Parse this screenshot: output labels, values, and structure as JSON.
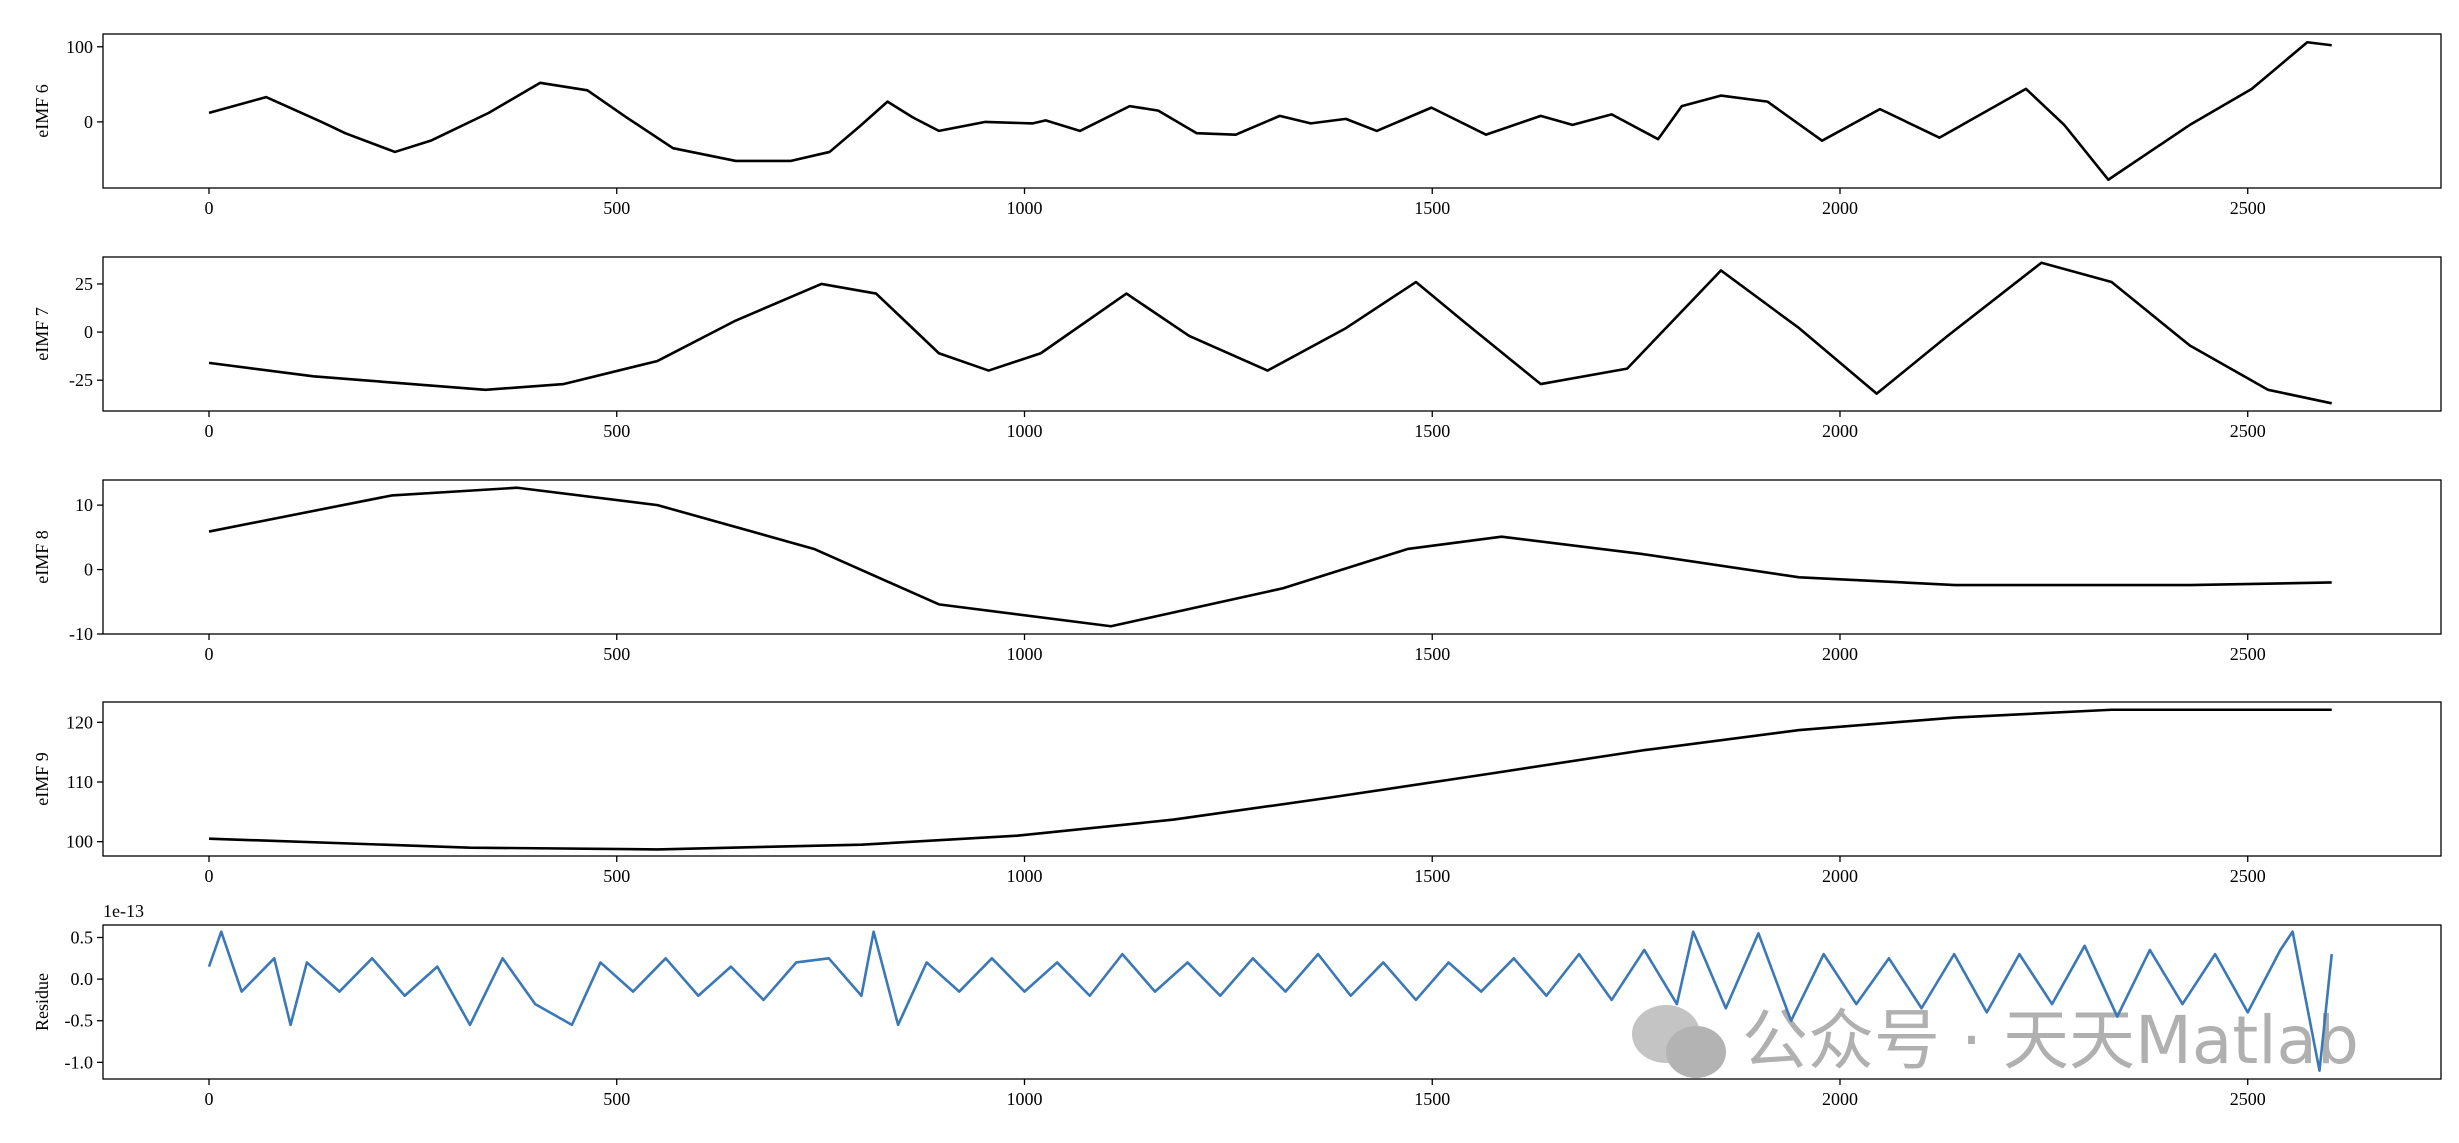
{
  "chart_data": [
    {
      "type": "line",
      "ylabel": "eIMF 6",
      "color": "#000000",
      "x": [
        0,
        70,
        138,
        167,
        228,
        272,
        343,
        406,
        464,
        512,
        569,
        646,
        713,
        761,
        800,
        832,
        863,
        895,
        952,
        1010,
        1026,
        1068,
        1129,
        1164,
        1211,
        1259,
        1313,
        1351,
        1394,
        1432,
        1499,
        1566,
        1633,
        1672,
        1720,
        1777,
        1806,
        1854,
        1911,
        1978,
        2049,
        2122,
        2228,
        2275,
        2329,
        2429,
        2505,
        2573,
        2603
      ],
      "values": [
        12,
        33,
        0,
        -15,
        -40,
        -25,
        12,
        52,
        42,
        6,
        -35,
        -52,
        -52,
        -40,
        -4,
        27,
        6,
        -12,
        0,
        -2,
        2,
        -12,
        21,
        15,
        -15,
        -17,
        8,
        -2,
        4,
        -12,
        19,
        -17,
        8,
        -4,
        10,
        -23,
        21,
        35,
        27,
        -25,
        17,
        -21,
        44,
        -4,
        -77,
        -4,
        44,
        106,
        102
      ],
      "xlim": [
        -130,
        2737
      ],
      "ylim": [
        -88,
        117
      ],
      "xticks": [
        0,
        500,
        1000,
        1500,
        2000,
        2500
      ],
      "yticks": [
        0,
        100
      ]
    },
    {
      "type": "line",
      "ylabel": "eIMF 7",
      "color": "#000000",
      "x": [
        0,
        128,
        339,
        435,
        550,
        646,
        751,
        818,
        895,
        956,
        1020,
        1125,
        1202,
        1298,
        1394,
        1480,
        1537,
        1633,
        1739,
        1854,
        1950,
        2045,
        2132,
        2247,
        2333,
        2429,
        2525,
        2603
      ],
      "values": [
        -16,
        -23,
        -30,
        -27,
        -15,
        6,
        25,
        20,
        -11,
        -20,
        -11,
        20,
        -2,
        -20,
        2,
        26,
        6,
        -27,
        -19,
        32,
        2,
        -32,
        -2,
        36,
        26,
        -7,
        -30,
        -37
      ],
      "xlim": [
        -130,
        2737
      ],
      "ylim": [
        -41,
        39
      ],
      "xticks": [
        0,
        500,
        1000,
        1500,
        2000,
        2500
      ],
      "yticks": [
        -25,
        0,
        25
      ]
    },
    {
      "type": "line",
      "ylabel": "eIMF 8",
      "color": "#000000",
      "x": [
        0,
        224,
        378,
        550,
        742,
        895,
        1106,
        1317,
        1470,
        1585,
        1758,
        1950,
        2141,
        2429,
        2603
      ],
      "values": [
        5.9,
        11.5,
        12.7,
        10,
        3.2,
        -5.4,
        -8.8,
        -2.9,
        3.2,
        5.1,
        2.4,
        -1.2,
        -2.4,
        -2.4,
        -2
      ],
      "xlim": [
        -130,
        2737
      ],
      "ylim": [
        -10,
        13.9
      ],
      "xticks": [
        0,
        500,
        1000,
        1500,
        2000,
        2500
      ],
      "yticks": [
        -10,
        0,
        10
      ]
    },
    {
      "type": "line",
      "ylabel": "eIMF 9",
      "color": "#000000",
      "x": [
        0,
        320,
        550,
        800,
        991,
        1183,
        1375,
        1566,
        1758,
        1950,
        2141,
        2333,
        2603
      ],
      "values": [
        100.5,
        99,
        98.7,
        99.5,
        101,
        103.7,
        107.4,
        111.3,
        115.3,
        118.7,
        120.8,
        122.1,
        122.1
      ],
      "xlim": [
        -130,
        2737
      ],
      "ylim": [
        97.6,
        123.4
      ],
      "xticks": [
        0,
        500,
        1000,
        1500,
        2000,
        2500
      ],
      "yticks": [
        100,
        110,
        120
      ]
    },
    {
      "type": "line",
      "ylabel": "Residue",
      "color": "#3a78b8",
      "offset_text": "1e-13",
      "x": [
        0,
        15,
        40,
        80,
        100,
        120,
        160,
        200,
        240,
        280,
        320,
        360,
        400,
        445,
        480,
        520,
        560,
        600,
        640,
        680,
        720,
        760,
        800,
        815,
        845,
        880,
        920,
        960,
        1000,
        1040,
        1080,
        1120,
        1160,
        1200,
        1240,
        1280,
        1320,
        1360,
        1400,
        1440,
        1480,
        1520,
        1560,
        1600,
        1640,
        1680,
        1720,
        1760,
        1800,
        1820,
        1860,
        1900,
        1940,
        1980,
        2020,
        2060,
        2100,
        2140,
        2180,
        2220,
        2260,
        2300,
        2340,
        2380,
        2420,
        2460,
        2500,
        2540,
        2555,
        2588,
        2603
      ],
      "values": [
        0.15,
        0.57,
        -0.15,
        0.25,
        -0.55,
        0.2,
        -0.15,
        0.25,
        -0.2,
        0.15,
        -0.55,
        0.25,
        -0.3,
        -0.55,
        0.2,
        -0.15,
        0.25,
        -0.2,
        0.15,
        -0.25,
        0.2,
        0.25,
        -0.2,
        0.57,
        -0.55,
        0.2,
        -0.15,
        0.25,
        -0.15,
        0.2,
        -0.2,
        0.3,
        -0.15,
        0.2,
        -0.2,
        0.25,
        -0.15,
        0.3,
        -0.2,
        0.2,
        -0.25,
        0.2,
        -0.15,
        0.25,
        -0.2,
        0.3,
        -0.25,
        0.35,
        -0.3,
        0.57,
        -0.35,
        0.55,
        -0.5,
        0.3,
        -0.3,
        0.25,
        -0.35,
        0.3,
        -0.4,
        0.3,
        -0.3,
        0.4,
        -0.45,
        0.35,
        -0.3,
        0.3,
        -0.4,
        0.35,
        0.57,
        -1.1,
        0.3
      ],
      "xlim": [
        -130,
        2737
      ],
      "ylim": [
        -1.2,
        0.65
      ],
      "xticks": [
        0,
        500,
        1000,
        1500,
        2000,
        2500
      ],
      "yticks": [
        {
          "value": -1.0,
          "label": "-1.0"
        },
        -0.5,
        {
          "value": 0.0,
          "label": "0.0"
        },
        0.5
      ]
    }
  ],
  "watermark": "公众号 · 天天Matlab"
}
